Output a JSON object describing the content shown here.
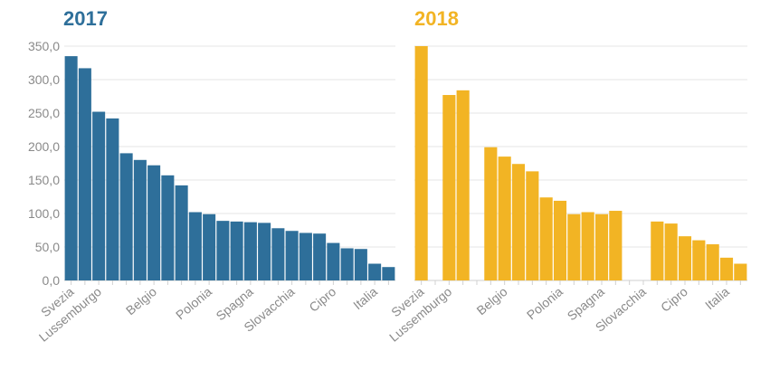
{
  "chart_data": [
    {
      "type": "bar",
      "title": "2017",
      "color": "#2e6f9a",
      "ylim": [
        0,
        350
      ],
      "yticks": [
        "0,0",
        "50,0",
        "100,0",
        "150,0",
        "200,0",
        "250,0",
        "300,0",
        "350,0"
      ],
      "xtick_labels": [
        "Svezia",
        "Lussemburgo",
        "Belgio",
        "Polonia",
        "Spagna",
        "Slovacchia",
        "Cipro",
        "Italia"
      ],
      "values": [
        335,
        317,
        252,
        242,
        190,
        180,
        172,
        157,
        142,
        102,
        99,
        89,
        88,
        87,
        86,
        78,
        74,
        71,
        70,
        56,
        48,
        47,
        25,
        20
      ],
      "grid": true
    },
    {
      "type": "bar",
      "title": "2018",
      "color": "#f2b424",
      "ylim": [
        0,
        350
      ],
      "xtick_labels": [
        "Svezia",
        "Lussemburgo",
        "Belgio",
        "Polonia",
        "Spagna",
        "Slovacchia",
        "Cipro",
        "Italia"
      ],
      "values": [
        350,
        null,
        277,
        284,
        null,
        199,
        185,
        174,
        163,
        124,
        119,
        99,
        102,
        99,
        104,
        null,
        null,
        88,
        85,
        66,
        60,
        54,
        34,
        25
      ],
      "grid": true
    }
  ]
}
